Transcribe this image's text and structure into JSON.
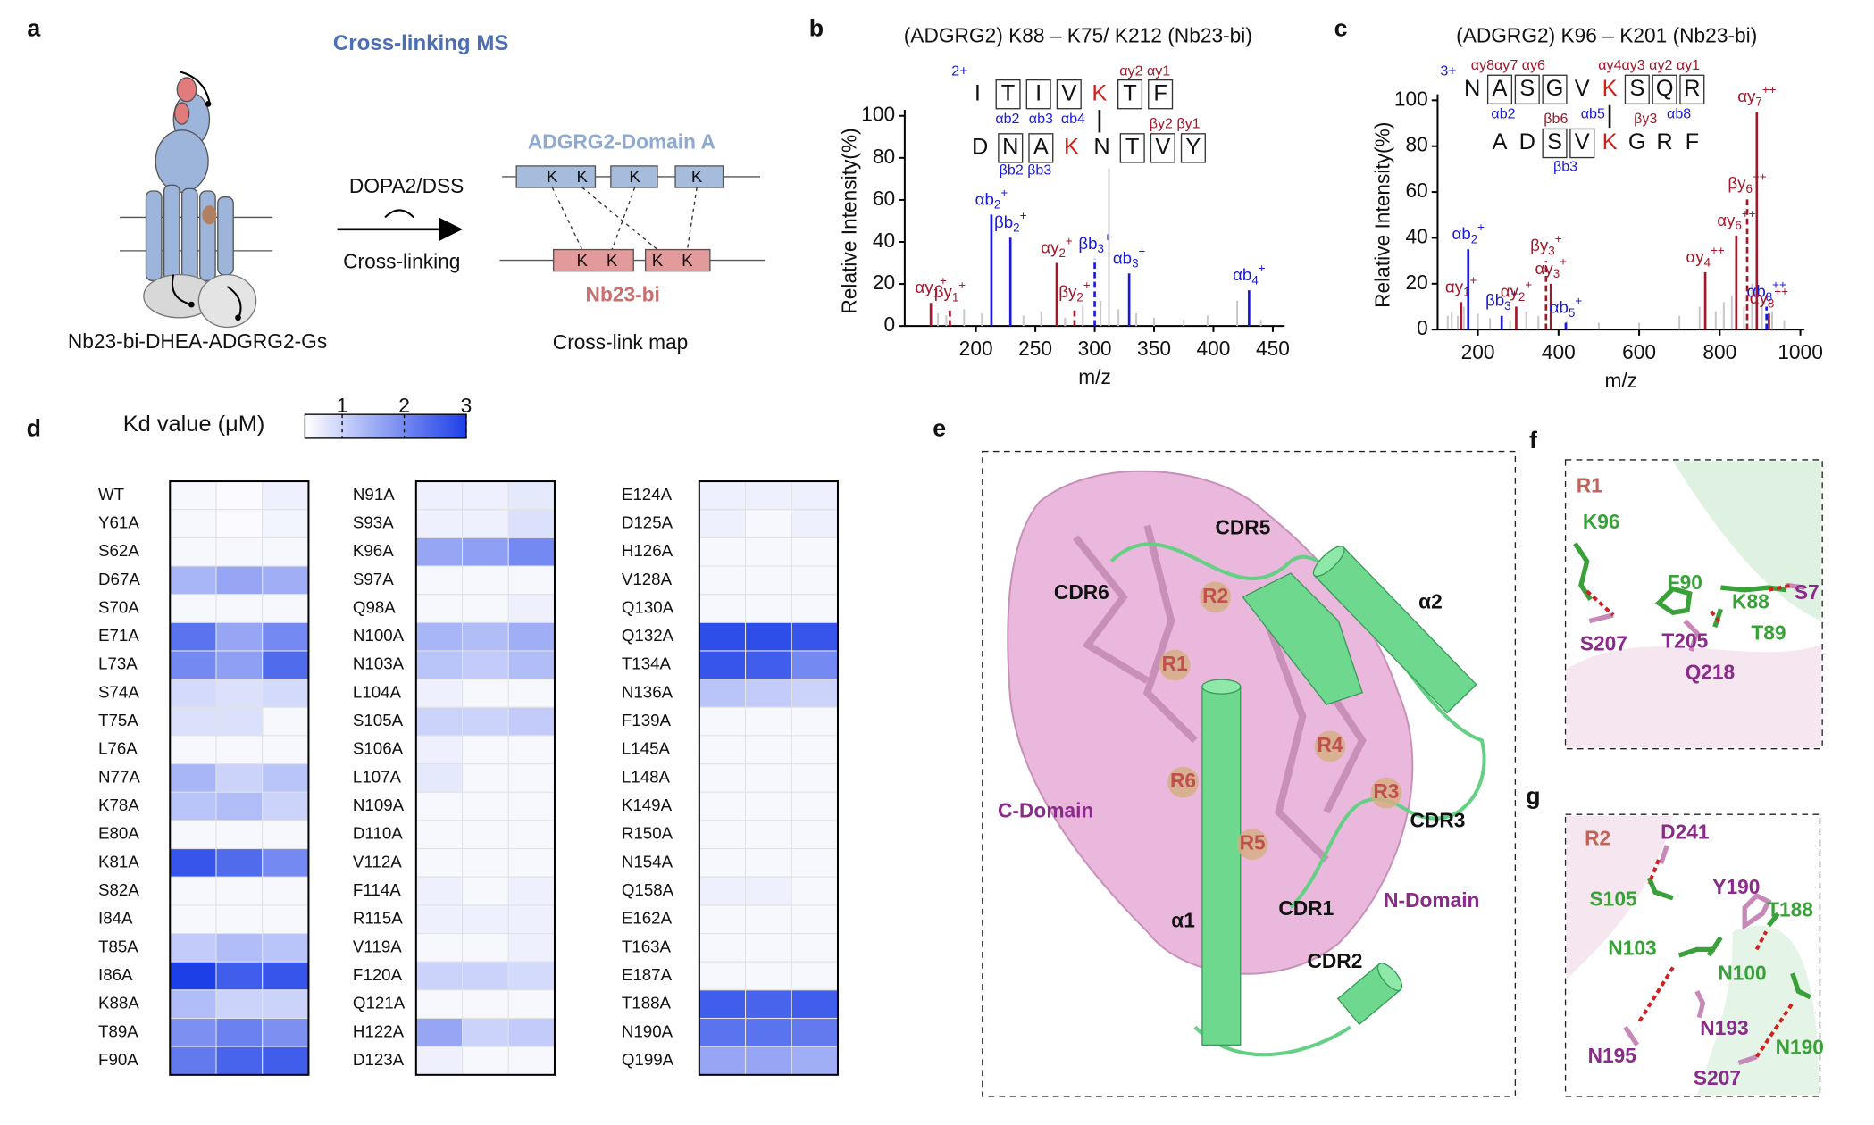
{
  "panel_labels": [
    "a",
    "b",
    "c",
    "d",
    "e",
    "f",
    "g"
  ],
  "a": {
    "title": "Cross-linking MS",
    "reagent": "DOPA2/DSS",
    "step": "Cross-linking",
    "domain_a": "ADGRG2-Domain A",
    "nb": "Nb23-bi",
    "lysine": "K",
    "complex": "Nb23-bi-DHEA-ADGRG2-Gs",
    "map": "Cross-link map"
  },
  "b": {
    "type": "spectrum",
    "title": "(ADGRG2) K88 – K75/ K212 (Nb23-bi)",
    "xlabel": "m/z",
    "ylabel": "Relative Intensity(%)",
    "xlim": [
      140,
      460
    ],
    "xticks": [
      200,
      250,
      300,
      350,
      400,
      450
    ],
    "ylim": [
      0,
      100
    ],
    "yticks": [
      0,
      20,
      40,
      60,
      80,
      100
    ],
    "charge": "2+",
    "alpha_sequence": [
      "I",
      "T",
      "I",
      "V",
      "K",
      "T",
      "F"
    ],
    "alpha_crosslink": 4,
    "beta_sequence": [
      "D",
      "N",
      "A",
      "K",
      "N",
      "T",
      "V",
      "Y"
    ],
    "beta_crosslink": 3,
    "fragments": [
      {
        "text": "αb2",
        "color": "#1a1adb"
      },
      {
        "text": "αb3",
        "color": "#1a1adb"
      },
      {
        "text": "αb4",
        "color": "#1a1adb"
      },
      {
        "text": "αy2 αy1",
        "color": "#a0182a"
      },
      {
        "text": "βy2 βy1",
        "color": "#a0182a"
      },
      {
        "text": "βb2 βb3",
        "color": "#1a1adb"
      }
    ],
    "peaks": [
      {
        "name": "αy",
        "sub": "1",
        "sup": "+",
        "mz": 162,
        "intensity": 11,
        "color": "#a0182a"
      },
      {
        "name": "βy",
        "sub": "1",
        "sup": "+",
        "mz": 178,
        "intensity": 9,
        "color": "#a0182a",
        "dashed": true
      },
      {
        "name": "αb",
        "sub": "2",
        "sup": "+",
        "mz": 213,
        "intensity": 53,
        "color": "#1a1adb"
      },
      {
        "name": "βb",
        "sub": "2",
        "sup": "+",
        "mz": 229,
        "intensity": 42,
        "color": "#1a1adb"
      },
      {
        "name": "αy",
        "sub": "2",
        "sup": "+",
        "mz": 268,
        "intensity": 30,
        "color": "#a0182a"
      },
      {
        "name": "βy",
        "sub": "2",
        "sup": "+",
        "mz": 283,
        "intensity": 9,
        "color": "#a0182a",
        "dashed": true
      },
      {
        "name": "βb",
        "sub": "3",
        "sup": "+",
        "mz": 300,
        "intensity": 32,
        "color": "#1a1adb",
        "dashed": true
      },
      {
        "name": "αb",
        "sub": "3",
        "sup": "+",
        "mz": 329,
        "intensity": 25,
        "color": "#1a1adb"
      },
      {
        "name": "αb",
        "sub": "4",
        "sup": "+",
        "mz": 430,
        "intensity": 17,
        "color": "#1a1adb"
      }
    ],
    "background": {
      "mz": [
        168,
        175,
        190,
        205,
        240,
        255,
        275,
        290,
        305,
        312,
        320,
        335,
        350,
        375,
        395,
        420,
        440
      ],
      "intensity": [
        6,
        5,
        8,
        6,
        5,
        7,
        4,
        10,
        12,
        75,
        8,
        6,
        4,
        3,
        5,
        12,
        3
      ]
    }
  },
  "c": {
    "type": "spectrum",
    "title": "(ADGRG2) K96 – K201 (Nb23-bi)",
    "xlabel": "m/z",
    "ylabel": "Relative Intensity(%)",
    "xlim": [
      100,
      1010
    ],
    "xticks": [
      200,
      400,
      600,
      800,
      1000
    ],
    "ylim": [
      0,
      100
    ],
    "yticks": [
      0,
      20,
      40,
      60,
      80,
      100
    ],
    "charge": "3+",
    "alpha_sequence": [
      "N",
      "A",
      "S",
      "G",
      "V",
      "K",
      "S",
      "Q",
      "R"
    ],
    "alpha_crosslink": 5,
    "beta_sequence": [
      "A",
      "D",
      "S",
      "V",
      "K",
      "G",
      "R",
      "F"
    ],
    "beta_crosslink": 4,
    "fragments": [
      {
        "text": "αy8αy7 αy6",
        "color": "#a0182a"
      },
      {
        "text": "αy4αy3 αy2 αy1",
        "color": "#a0182a"
      },
      {
        "text": "αb2",
        "color": "#1a1adb"
      },
      {
        "text": "αb5",
        "color": "#1a1adb"
      },
      {
        "text": "αb8",
        "color": "#1a1adb"
      },
      {
        "text": "βb6",
        "color": "#a0182a"
      },
      {
        "text": "βy3",
        "color": "#a0182a"
      },
      {
        "text": "βb3",
        "color": "#1a1adb"
      }
    ],
    "peaks": [
      {
        "name": "αy",
        "sub": "1",
        "sup": "+",
        "mz": 158,
        "intensity": 12,
        "color": "#a0182a"
      },
      {
        "name": "αb",
        "sub": "2",
        "sup": "+",
        "mz": 176,
        "intensity": 35,
        "color": "#1a1adb"
      },
      {
        "name": "βb",
        "sub": "3",
        "sup": "+",
        "mz": 259,
        "intensity": 6,
        "color": "#1a1adb"
      },
      {
        "name": "αy",
        "sub": "2",
        "sup": "+",
        "mz": 295,
        "intensity": 10,
        "color": "#a0182a"
      },
      {
        "name": "βy",
        "sub": "3",
        "sup": "+",
        "mz": 369,
        "intensity": 30,
        "color": "#a0182a",
        "dashed": true
      },
      {
        "name": "αy",
        "sub": "3",
        "sup": "+",
        "mz": 381,
        "intensity": 20,
        "color": "#a0182a"
      },
      {
        "name": "αb",
        "sub": "5",
        "sup": "+",
        "mz": 418,
        "intensity": 3,
        "color": "#1a1adb"
      },
      {
        "name": "αy",
        "sub": "4",
        "sup": "++",
        "mz": 764,
        "intensity": 25,
        "color": "#a0182a"
      },
      {
        "name": "αy",
        "sub": "6",
        "sup": "++",
        "mz": 841,
        "intensity": 41,
        "color": "#a0182a"
      },
      {
        "name": "βy",
        "sub": "6",
        "sup": "++",
        "mz": 868,
        "intensity": 57,
        "color": "#a0182a",
        "dashed": true
      },
      {
        "name": "αy",
        "sub": "7",
        "sup": "++",
        "mz": 892,
        "intensity": 95,
        "color": "#a0182a"
      },
      {
        "name": "αb",
        "sub": "8",
        "sup": "++",
        "mz": 916,
        "intensity": 10,
        "color": "#1a1adb",
        "dashed": true
      },
      {
        "name": "αy",
        "sub": "8",
        "sup": "++",
        "mz": 922,
        "intensity": 7,
        "color": "#a0182a"
      }
    ],
    "background": {
      "mz": [
        125,
        135,
        150,
        165,
        200,
        230,
        280,
        320,
        350,
        420,
        500,
        600,
        700,
        750,
        790,
        810,
        830,
        860,
        880,
        905,
        930,
        960
      ],
      "intensity": [
        6,
        8,
        6,
        10,
        7,
        5,
        4,
        8,
        6,
        4,
        3,
        3,
        6,
        10,
        8,
        12,
        15,
        10,
        20,
        12,
        8,
        4
      ]
    }
  },
  "d": {
    "legend_title": "Kd value (μM)",
    "clim": [
      0.4,
      3
    ],
    "cticks": [
      1,
      2,
      3
    ],
    "columns": [
      {
        "mutants": [
          "WT",
          "Y61A",
          "S62A",
          "D67A",
          "S70A",
          "E71A",
          "L73A",
          "S74A",
          "T75A",
          "L76A",
          "N77A",
          "K78A",
          "E80A",
          "K81A",
          "S82A",
          "I84A",
          "T85A",
          "I86A",
          "K88A",
          "T89A",
          "F90A"
        ],
        "values": [
          [
            0.5,
            0.45,
            0.6
          ],
          [
            0.5,
            0.45,
            0.55
          ],
          [
            0.5,
            0.5,
            0.5
          ],
          [
            1.4,
            1.6,
            1.5
          ],
          [
            0.5,
            0.5,
            0.5
          ],
          [
            2.3,
            1.6,
            2.0
          ],
          [
            2.0,
            1.7,
            2.4
          ],
          [
            0.9,
            0.8,
            0.9
          ],
          [
            0.8,
            0.8,
            0.5
          ],
          [
            0.5,
            0.5,
            0.5
          ],
          [
            1.4,
            1.0,
            1.2
          ],
          [
            1.2,
            1.3,
            1.0
          ],
          [
            0.5,
            0.5,
            0.5
          ],
          [
            2.7,
            2.4,
            2.0
          ],
          [
            0.5,
            0.5,
            0.5
          ],
          [
            0.5,
            0.5,
            0.5
          ],
          [
            1.1,
            1.3,
            1.2
          ],
          [
            3.0,
            2.6,
            2.7
          ],
          [
            1.3,
            1.0,
            1.0
          ],
          [
            1.9,
            2.1,
            1.9
          ],
          [
            2.2,
            2.5,
            2.6
          ]
        ]
      },
      {
        "mutants": [
          "N91A",
          "S93A",
          "K96A",
          "S97A",
          "Q98A",
          "N100A",
          "N103A",
          "L104A",
          "S105A",
          "S106A",
          "L107A",
          "N109A",
          "D110A",
          "V112A",
          "F114A",
          "R115A",
          "V119A",
          "F120A",
          "Q121A",
          "H122A",
          "D123A"
        ],
        "values": [
          [
            0.6,
            0.6,
            0.7
          ],
          [
            0.6,
            0.6,
            0.8
          ],
          [
            1.6,
            1.7,
            2.0
          ],
          [
            0.5,
            0.5,
            0.5
          ],
          [
            0.5,
            0.5,
            0.6
          ],
          [
            1.4,
            1.3,
            1.5
          ],
          [
            1.2,
            1.1,
            1.3
          ],
          [
            0.6,
            0.5,
            0.5
          ],
          [
            1.0,
            1.0,
            1.1
          ],
          [
            0.6,
            0.5,
            0.5
          ],
          [
            0.7,
            0.5,
            0.5
          ],
          [
            0.5,
            0.5,
            0.5
          ],
          [
            0.5,
            0.5,
            0.5
          ],
          [
            0.5,
            0.5,
            0.5
          ],
          [
            0.6,
            0.5,
            0.6
          ],
          [
            0.6,
            0.6,
            0.6
          ],
          [
            0.5,
            0.5,
            0.6
          ],
          [
            1.0,
            1.0,
            0.9
          ],
          [
            0.5,
            0.5,
            0.5
          ],
          [
            1.6,
            1.0,
            1.1
          ],
          [
            0.6,
            0.5,
            0.5
          ]
        ]
      },
      {
        "mutants": [
          "E124A",
          "D125A",
          "H126A",
          "V128A",
          "Q130A",
          "Q132A",
          "T134A",
          "N136A",
          "F139A",
          "L145A",
          "L148A",
          "K149A",
          "R150A",
          "N154A",
          "Q158A",
          "E162A",
          "T163A",
          "E187A",
          "T188A",
          "N190A",
          "Q199A"
        ],
        "values": [
          [
            0.6,
            0.6,
            0.6
          ],
          [
            0.6,
            0.5,
            0.6
          ],
          [
            0.5,
            0.5,
            0.5
          ],
          [
            0.5,
            0.5,
            0.5
          ],
          [
            0.5,
            0.5,
            0.5
          ],
          [
            2.8,
            2.8,
            2.7
          ],
          [
            2.7,
            2.6,
            2.0
          ],
          [
            1.2,
            1.1,
            1.0
          ],
          [
            0.5,
            0.5,
            0.5
          ],
          [
            0.5,
            0.5,
            0.5
          ],
          [
            0.5,
            0.5,
            0.5
          ],
          [
            0.5,
            0.5,
            0.5
          ],
          [
            0.5,
            0.5,
            0.5
          ],
          [
            0.5,
            0.5,
            0.5
          ],
          [
            0.6,
            0.6,
            0.5
          ],
          [
            0.5,
            0.5,
            0.5
          ],
          [
            0.5,
            0.5,
            0.5
          ],
          [
            0.5,
            0.5,
            0.5
          ],
          [
            2.6,
            2.5,
            2.6
          ],
          [
            2.3,
            2.3,
            2.2
          ],
          [
            1.6,
            1.6,
            1.5
          ]
        ]
      }
    ]
  },
  "e": {
    "labels": [
      {
        "text": "CDR5",
        "color": "#111"
      },
      {
        "text": "CDR6",
        "color": "#111"
      },
      {
        "text": "R2",
        "color": "#c0504d"
      },
      {
        "text": "R1",
        "color": "#c0504d"
      },
      {
        "text": "α2",
        "color": "#111"
      },
      {
        "text": "R4",
        "color": "#c0504d"
      },
      {
        "text": "R6",
        "color": "#c0504d"
      },
      {
        "text": "R3",
        "color": "#c0504d"
      },
      {
        "text": "C-Domain",
        "color": "#8a2a8a"
      },
      {
        "text": "CDR3",
        "color": "#111"
      },
      {
        "text": "R5",
        "color": "#c0504d"
      },
      {
        "text": "CDR1",
        "color": "#111"
      },
      {
        "text": "N-Domain",
        "color": "#8a2a8a"
      },
      {
        "text": "α1",
        "color": "#111"
      },
      {
        "text": "CDR2",
        "color": "#111"
      }
    ]
  },
  "f": {
    "labels": [
      {
        "text": "R1",
        "color": "#c0645a"
      },
      {
        "text": "K96",
        "color": "#3aa13a"
      },
      {
        "text": "F90",
        "color": "#3aa13a"
      },
      {
        "text": "K88",
        "color": "#3aa13a"
      },
      {
        "text": "S7",
        "color": "#8a2a8a"
      },
      {
        "text": "S207",
        "color": "#8a2a8a"
      },
      {
        "text": "T205",
        "color": "#8a2a8a"
      },
      {
        "text": "T89",
        "color": "#3aa13a"
      },
      {
        "text": "Q218",
        "color": "#8a2a8a"
      }
    ]
  },
  "g": {
    "labels": [
      {
        "text": "R2",
        "color": "#c0645a"
      },
      {
        "text": "D241",
        "color": "#8a2a8a"
      },
      {
        "text": "S105",
        "color": "#3aa13a"
      },
      {
        "text": "Y190",
        "color": "#8a2a8a"
      },
      {
        "text": "T188",
        "color": "#3aa13a"
      },
      {
        "text": "N103",
        "color": "#3aa13a"
      },
      {
        "text": "N100",
        "color": "#3aa13a"
      },
      {
        "text": "N193",
        "color": "#8a2a8a"
      },
      {
        "text": "N195",
        "color": "#8a2a8a"
      },
      {
        "text": "S207",
        "color": "#8a2a8a"
      },
      {
        "text": "N190",
        "color": "#3aa13a"
      }
    ]
  }
}
